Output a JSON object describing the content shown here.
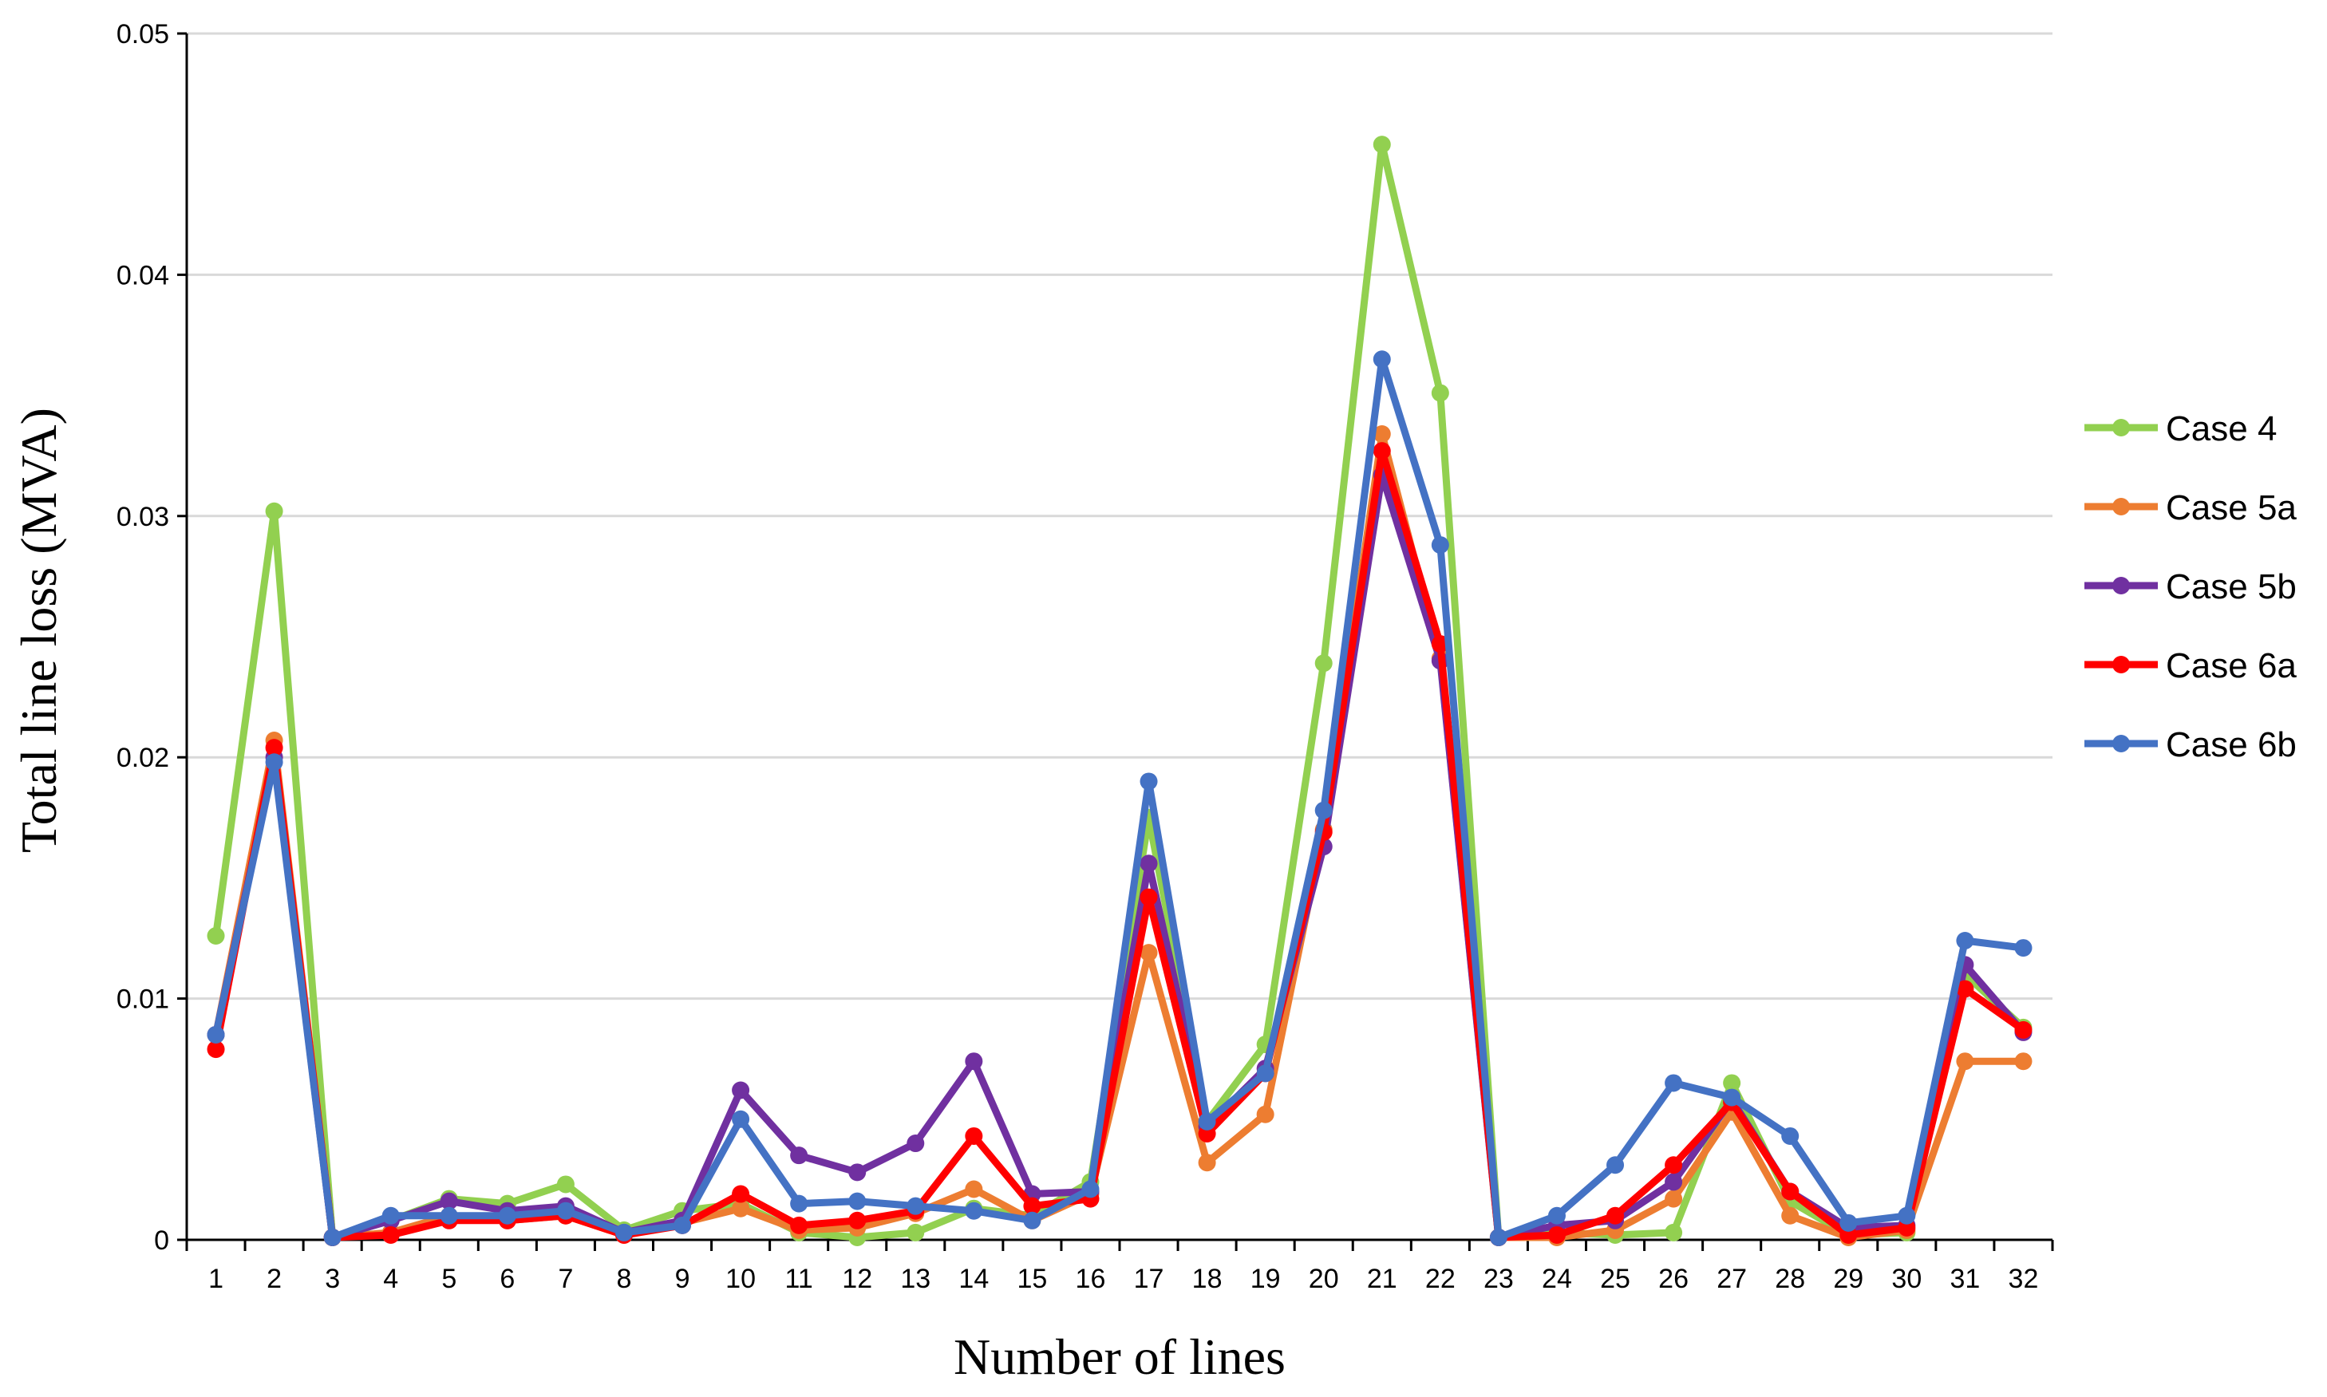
{
  "chart_data": {
    "type": "line",
    "xlabel": "Number of lines",
    "ylabel": "Total line loss (MVA)",
    "ylim": [
      0,
      0.05
    ],
    "yticks": [
      0,
      0.01,
      0.02,
      0.03,
      0.04,
      0.05
    ],
    "ytick_labels": [
      "0",
      "0.01",
      "0.02",
      "0.03",
      "0.04",
      "0.05"
    ],
    "categories": [
      "1",
      "2",
      "3",
      "4",
      "5",
      "6",
      "7",
      "8",
      "9",
      "10",
      "11",
      "12",
      "13",
      "14",
      "15",
      "16",
      "17",
      "18",
      "19",
      "20",
      "21",
      "22",
      "23",
      "24",
      "25",
      "26",
      "27",
      "28",
      "29",
      "30",
      "31",
      "32"
    ],
    "grid": "horizontal",
    "legend_position": "right",
    "series": [
      {
        "name": "Case 4",
        "color": "#92D050",
        "values": [
          0.0126,
          0.0302,
          0.0001,
          0.0008,
          0.0017,
          0.0015,
          0.0023,
          0.0004,
          0.0012,
          0.0015,
          0.0003,
          0.0001,
          0.0003,
          0.0013,
          0.001,
          0.0024,
          0.0175,
          0.0049,
          0.0081,
          0.0239,
          0.0454,
          0.0351,
          0.0001,
          0.0003,
          0.0002,
          0.0003,
          0.0065,
          0.0016,
          0.0002,
          0.0003,
          0.011,
          0.0088
        ]
      },
      {
        "name": "Case 5a",
        "color": "#ED7D31",
        "values": [
          0.0085,
          0.0207,
          0.0001,
          0.0003,
          0.001,
          0.0008,
          0.001,
          0.0002,
          0.0007,
          0.0013,
          0.0004,
          0.0005,
          0.0011,
          0.0021,
          0.0008,
          0.0019,
          0.0119,
          0.0032,
          0.0052,
          0.017,
          0.0334,
          0.0241,
          0.0001,
          0.0001,
          0.0004,
          0.0017,
          0.0053,
          0.001,
          0.0001,
          0.0004,
          0.0074,
          0.0074
        ]
      },
      {
        "name": "Case 5b",
        "color": "#7030A0",
        "values": [
          0.0085,
          0.02,
          0.0001,
          0.0008,
          0.0016,
          0.0012,
          0.0014,
          0.0003,
          0.0008,
          0.0062,
          0.0035,
          0.0028,
          0.004,
          0.0074,
          0.0019,
          0.002,
          0.0156,
          0.0047,
          0.0071,
          0.0163,
          0.0317,
          0.024,
          0.0001,
          0.0006,
          0.0008,
          0.0024,
          0.0058,
          0.002,
          0.0005,
          0.0006,
          0.0114,
          0.0086
        ]
      },
      {
        "name": "Case 6a",
        "color": "#FF0000",
        "values": [
          0.0079,
          0.0204,
          0.0001,
          0.0002,
          0.0008,
          0.0008,
          0.001,
          0.0002,
          0.0006,
          0.0019,
          0.0006,
          0.0008,
          0.0012,
          0.0043,
          0.0014,
          0.0017,
          0.0142,
          0.0044,
          0.0069,
          0.0169,
          0.0327,
          0.0247,
          0.0001,
          0.0002,
          0.001,
          0.0031,
          0.0057,
          0.002,
          0.0002,
          0.0005,
          0.0104,
          0.0087
        ]
      },
      {
        "name": "Case 6b",
        "color": "#4472C4",
        "values": [
          0.0085,
          0.0198,
          0.0001,
          0.001,
          0.001,
          0.001,
          0.0012,
          0.0003,
          0.0006,
          0.005,
          0.0015,
          0.0016,
          0.0014,
          0.0012,
          0.0008,
          0.0021,
          0.019,
          0.0049,
          0.0069,
          0.0178,
          0.0365,
          0.0288,
          0.0001,
          0.001,
          0.0031,
          0.0065,
          0.0059,
          0.0043,
          0.0007,
          0.001,
          0.0124,
          0.0121
        ]
      }
    ]
  }
}
